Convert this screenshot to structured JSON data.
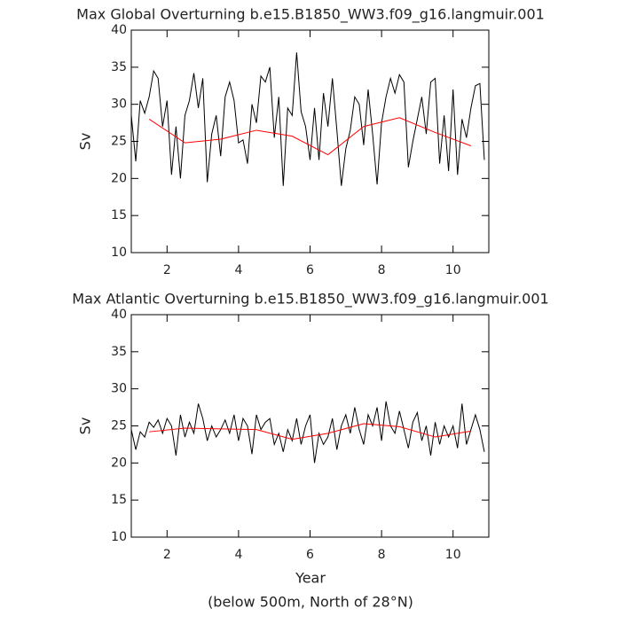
{
  "chart_data": [
    {
      "type": "line",
      "title": "Max Global Overturning b.e15.B1850_WW3.f09_g16.langmuir.001",
      "ylabel": "Sv",
      "xlim": [
        1,
        11
      ],
      "ylim": [
        10,
        40
      ],
      "xticks": [
        2,
        4,
        6,
        8,
        10
      ],
      "yticks": [
        10,
        15,
        20,
        25,
        30,
        35,
        40
      ],
      "series": [
        {
          "color": "#000000",
          "x": [
            1,
            1.125,
            1.25,
            1.375,
            1.5,
            1.625,
            1.75,
            1.875,
            2,
            2.125,
            2.25,
            2.375,
            2.5,
            2.625,
            2.75,
            2.875,
            3,
            3.125,
            3.25,
            3.375,
            3.5,
            3.625,
            3.75,
            3.875,
            4,
            4.125,
            4.25,
            4.375,
            4.5,
            4.625,
            4.75,
            4.875,
            5,
            5.125,
            5.25,
            5.375,
            5.5,
            5.625,
            5.75,
            5.875,
            6,
            6.125,
            6.25,
            6.375,
            6.5,
            6.625,
            6.75,
            6.875,
            7,
            7.125,
            7.25,
            7.375,
            7.5,
            7.625,
            7.75,
            7.875,
            8,
            8.125,
            8.25,
            8.375,
            8.5,
            8.625,
            8.75,
            8.875,
            9,
            9.125,
            9.25,
            9.375,
            9.5,
            9.625,
            9.75,
            9.875,
            10,
            10.125,
            10.25,
            10.375,
            10.5,
            10.625,
            10.75,
            10.875
          ],
          "values": [
            28.5,
            22.3,
            30.5,
            28.8,
            31.0,
            34.5,
            33.5,
            27.0,
            30.5,
            20.5,
            27.0,
            20.0,
            28.5,
            30.5,
            34.2,
            29.5,
            33.5,
            19.5,
            26.0,
            28.5,
            23.0,
            31.0,
            33.0,
            30.5,
            24.8,
            25.2,
            22.0,
            30.0,
            27.5,
            33.8,
            33.0,
            35.0,
            25.5,
            31.0,
            19.0,
            29.5,
            28.5,
            37.0,
            29.0,
            27.0,
            22.5,
            29.5,
            22.5,
            31.5,
            27.0,
            33.5,
            26.5,
            19.0,
            24.0,
            26.5,
            31.0,
            30.0,
            24.5,
            32.0,
            26.0,
            19.2,
            27.5,
            31.0,
            33.5,
            31.5,
            34.0,
            33.0,
            21.5,
            25.0,
            28.0,
            31.0,
            26.0,
            33.0,
            33.5,
            22.0,
            28.5,
            21.0,
            32.0,
            20.5,
            28.0,
            25.5,
            29.5,
            32.5,
            32.8,
            22.5
          ]
        },
        {
          "color": "#ff0000",
          "x": [
            1.5,
            2.5,
            3.5,
            4.5,
            5.5,
            6.5,
            7.5,
            8.5,
            9.5,
            10.5
          ],
          "values": [
            28.0,
            24.8,
            25.3,
            26.5,
            25.7,
            23.2,
            27.0,
            28.2,
            26.2,
            24.4
          ]
        }
      ]
    },
    {
      "type": "line",
      "title": "Max Atlantic Overturning b.e15.B1850_WW3.f09_g16.langmuir.001",
      "ylabel": "Sv",
      "xlabel": "Year",
      "caption": "(below 500m, North of 28°N)",
      "xlim": [
        1,
        11
      ],
      "ylim": [
        10,
        40
      ],
      "xticks": [
        2,
        4,
        6,
        8,
        10
      ],
      "yticks": [
        10,
        15,
        20,
        25,
        30,
        35,
        40
      ],
      "series": [
        {
          "color": "#000000",
          "x": [
            1,
            1.125,
            1.25,
            1.375,
            1.5,
            1.625,
            1.75,
            1.875,
            2,
            2.125,
            2.25,
            2.375,
            2.5,
            2.625,
            2.75,
            2.875,
            3,
            3.125,
            3.25,
            3.375,
            3.5,
            3.625,
            3.75,
            3.875,
            4,
            4.125,
            4.25,
            4.375,
            4.5,
            4.625,
            4.75,
            4.875,
            5,
            5.125,
            5.25,
            5.375,
            5.5,
            5.625,
            5.75,
            5.875,
            6,
            6.125,
            6.25,
            6.375,
            6.5,
            6.625,
            6.75,
            6.875,
            7,
            7.125,
            7.25,
            7.375,
            7.5,
            7.625,
            7.75,
            7.875,
            8,
            8.125,
            8.25,
            8.375,
            8.5,
            8.625,
            8.75,
            8.875,
            9,
            9.125,
            9.25,
            9.375,
            9.5,
            9.625,
            9.75,
            9.875,
            10,
            10.125,
            10.25,
            10.375,
            10.5,
            10.625,
            10.75,
            10.875
          ],
          "values": [
            24.5,
            21.8,
            24.2,
            23.5,
            25.5,
            24.8,
            25.8,
            24.0,
            26.0,
            25.0,
            21.0,
            26.5,
            23.5,
            25.5,
            24.0,
            28.0,
            26.0,
            23.0,
            25.0,
            23.5,
            24.5,
            25.8,
            24.0,
            26.5,
            23.0,
            26.0,
            25.0,
            21.2,
            26.5,
            24.5,
            25.5,
            26.0,
            22.5,
            24.0,
            21.5,
            24.5,
            23.0,
            26.0,
            22.5,
            25.0,
            26.5,
            20.0,
            24.0,
            22.5,
            23.5,
            26.0,
            21.8,
            25.0,
            26.5,
            24.0,
            27.5,
            24.5,
            22.5,
            26.5,
            25.0,
            27.5,
            23.0,
            28.3,
            25.0,
            24.0,
            27.0,
            24.5,
            22.0,
            25.5,
            26.8,
            23.0,
            25.0,
            21.0,
            25.5,
            22.5,
            25.0,
            23.5,
            25.0,
            22.0,
            28.0,
            22.5,
            24.5,
            26.5,
            24.5,
            21.5
          ]
        },
        {
          "color": "#ff0000",
          "x": [
            1.5,
            2.5,
            3.5,
            4.5,
            5.5,
            6.5,
            7.5,
            8.5,
            9.5,
            10.5
          ],
          "values": [
            24.2,
            24.7,
            24.6,
            24.5,
            23.2,
            24.0,
            25.3,
            24.9,
            23.5,
            24.3
          ]
        }
      ]
    }
  ]
}
